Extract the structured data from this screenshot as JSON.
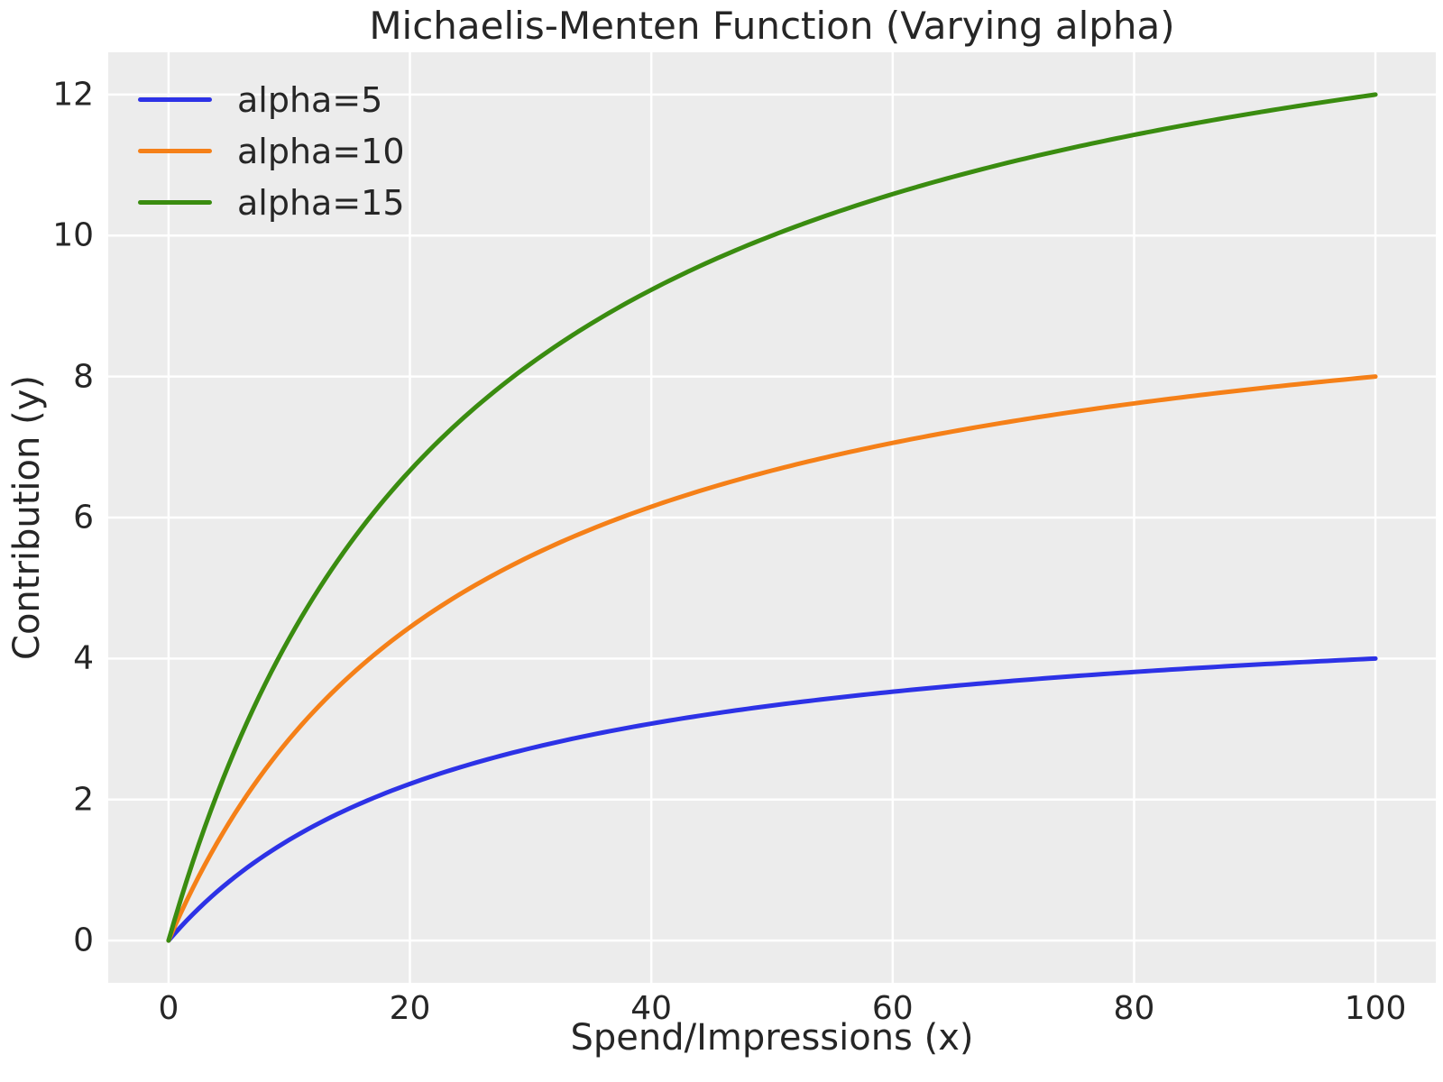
{
  "chart_data": {
    "type": "line",
    "title": "Michaelis-Menten Function (Varying alpha)",
    "xlabel": "Spend/Impressions (x)",
    "ylabel": "Contribution (y)",
    "xlim": [
      0,
      100
    ],
    "ylim": [
      0,
      12
    ],
    "xticks": [
      0,
      20,
      40,
      60,
      80,
      100
    ],
    "yticks": [
      0,
      2,
      4,
      6,
      8,
      10,
      12
    ],
    "grid": true,
    "legend_position": "upper-left",
    "legend_frame": false,
    "function": "y = alpha * x / (x + lambda)",
    "lambda": 25,
    "x_samples": [
      0,
      5,
      10,
      15,
      20,
      25,
      30,
      35,
      40,
      45,
      50,
      55,
      60,
      65,
      70,
      75,
      80,
      85,
      90,
      95,
      100
    ],
    "series": [
      {
        "name": "alpha=5",
        "alpha": 5,
        "color": "#2d32e6",
        "values": [
          0,
          0.833,
          1.429,
          1.875,
          2.222,
          2.5,
          2.727,
          2.917,
          3.077,
          3.214,
          3.333,
          3.438,
          3.529,
          3.611,
          3.684,
          3.75,
          3.81,
          3.864,
          3.913,
          3.958,
          4
        ]
      },
      {
        "name": "alpha=10",
        "alpha": 10,
        "color": "#f58018",
        "values": [
          0,
          1.667,
          2.857,
          3.75,
          4.444,
          5,
          5.455,
          5.833,
          6.154,
          6.429,
          6.667,
          6.875,
          7.059,
          7.222,
          7.368,
          7.5,
          7.619,
          7.727,
          7.826,
          7.917,
          8
        ]
      },
      {
        "name": "alpha=15",
        "alpha": 15,
        "color": "#3a8c10",
        "values": [
          0,
          2.5,
          4.286,
          5.625,
          6.667,
          7.5,
          8.182,
          8.75,
          9.231,
          9.643,
          10,
          10.313,
          10.588,
          10.833,
          11.053,
          11.25,
          11.429,
          11.591,
          11.739,
          11.875,
          12
        ]
      }
    ],
    "style": {
      "plot_background": "#ececec",
      "grid_color": "#ffffff",
      "text_color": "#262626",
      "line_width": 5
    }
  }
}
